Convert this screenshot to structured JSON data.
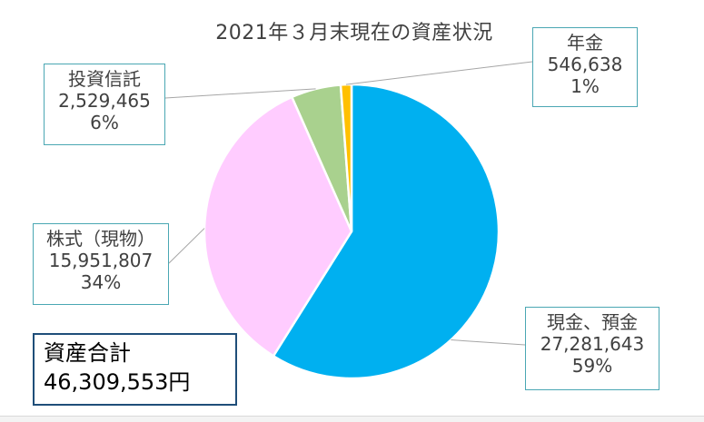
{
  "chart_data": {
    "type": "pie",
    "title": "2021年３月末現在の資産状況",
    "slices": [
      {
        "label": "現金、預金",
        "value": 27281643,
        "percent": "59%",
        "value_text": "27,281,643",
        "color": "#00b0f0"
      },
      {
        "label": "株式（現物）",
        "value": 15951807,
        "percent": "34%",
        "value_text": "15,951,807",
        "color": "#ffccff"
      },
      {
        "label": "投資信託",
        "value": 2529465,
        "percent": "6%",
        "value_text": "2,529,465",
        "color": "#a9d18e"
      },
      {
        "label": "年金",
        "value": 546638,
        "percent": "1%",
        "value_text": "546,638",
        "color": "#ffc000"
      }
    ]
  },
  "total": {
    "label": "資産合計",
    "value_text": "46,309,553円"
  }
}
